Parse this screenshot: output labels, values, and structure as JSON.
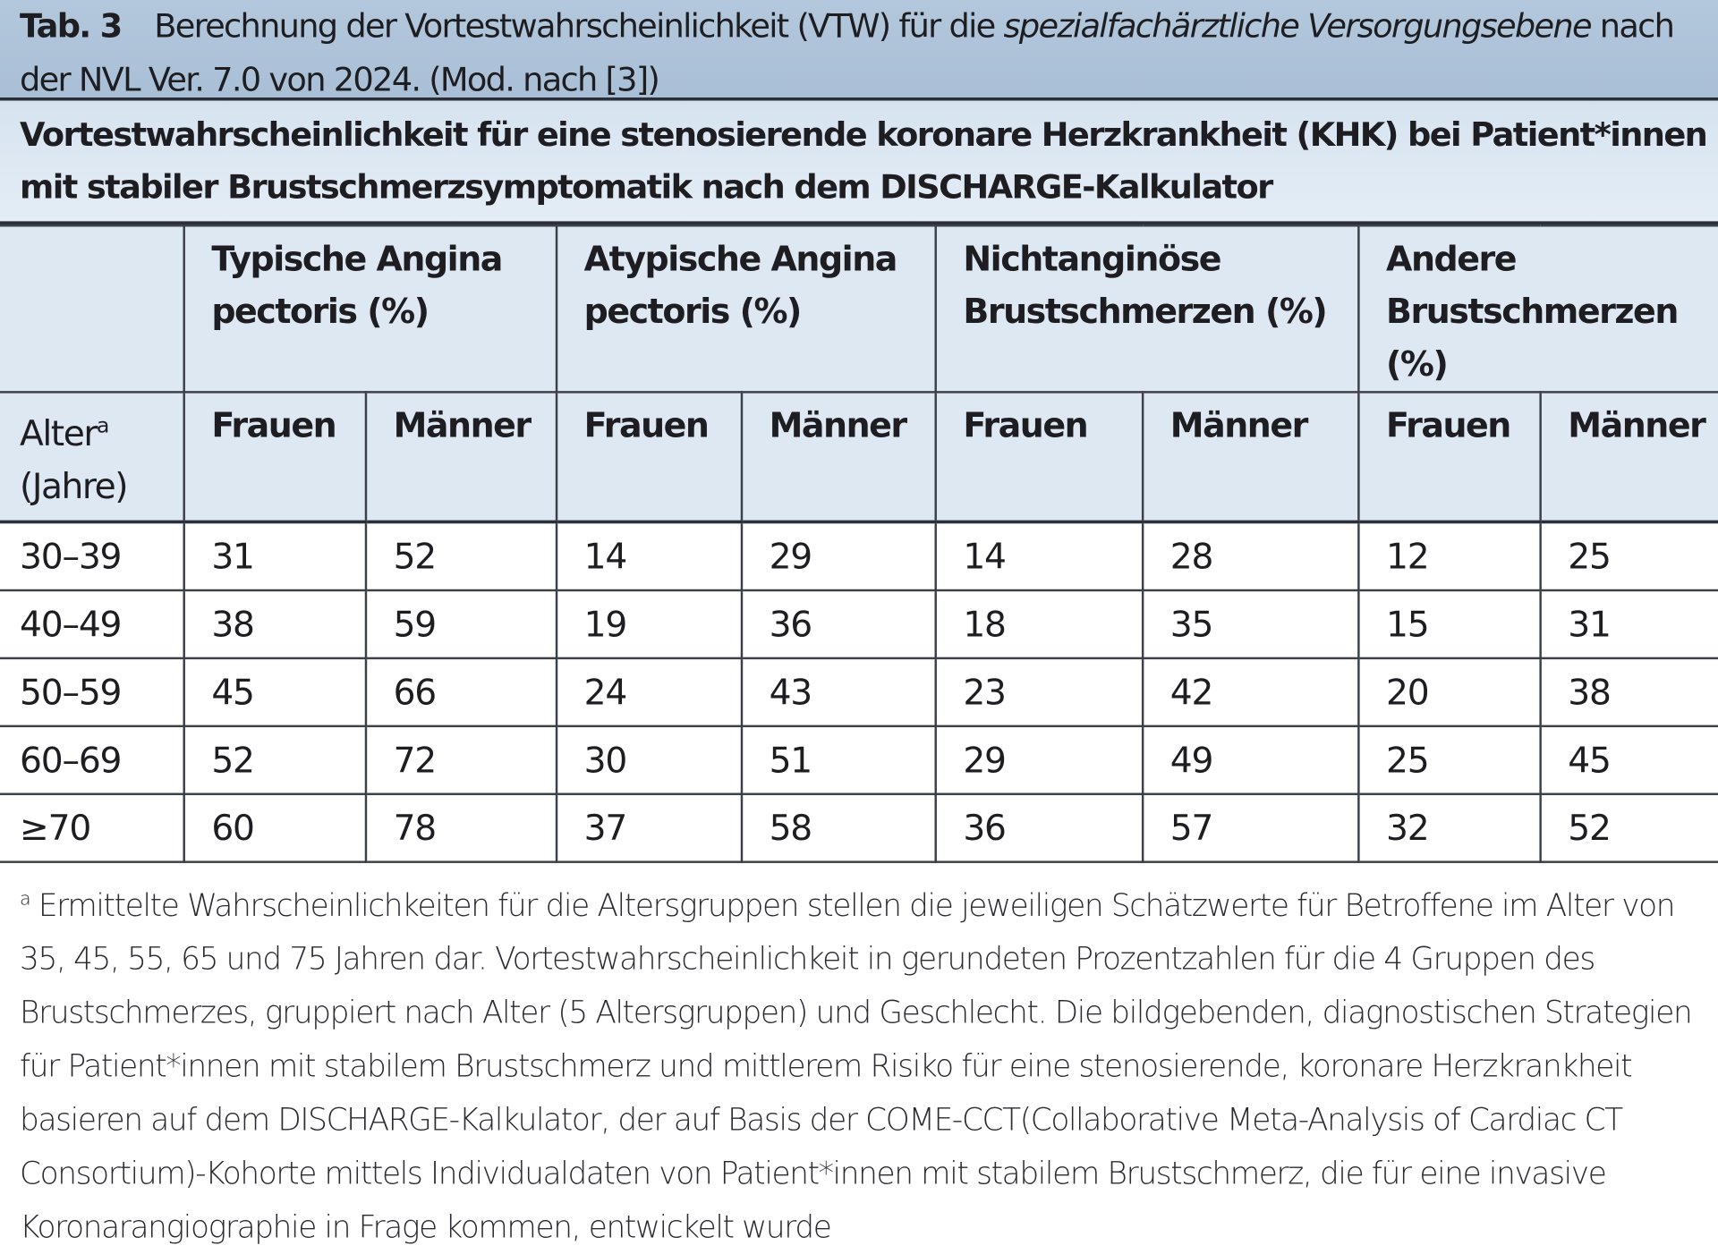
{
  "caption": {
    "label": "Tab. 3",
    "text_a": "Berechnung der Vortestwahrscheinlichkeit (VTW) für die ",
    "text_italic": "spezialfachärztliche Versorgungsebene",
    "text_b": " nach der NVL Ver. 7.0 von 2024. (Mod. nach [3])"
  },
  "subtitle": "Vortestwahrscheinlichkeit für eine stenosierende koronare Herzkrankheit (KHK) bei Patient*innen mit stabiler Brustschmerzsymptomatik nach dem DISCHARGE-Kalkulator",
  "table": {
    "groups": [
      "Typische Angina pectoris (%)",
      "Atypische Angina pectoris (%)",
      "Nichtanginöse Brustschmerzen (%)",
      "Andere Brustschmerzen (%)"
    ],
    "age_header": "Alter",
    "age_header_sup": "a",
    "age_header_unit": "(Jahre)",
    "sub_headers": [
      "Frauen",
      "Männer",
      "Frauen",
      "Männer",
      "Frauen",
      "Männer",
      "Frauen",
      "Männer"
    ],
    "rows": [
      [
        "30–39",
        "31",
        "52",
        "14",
        "29",
        "14",
        "28",
        "12",
        "25"
      ],
      [
        "40–49",
        "38",
        "59",
        "19",
        "36",
        "18",
        "35",
        "15",
        "31"
      ],
      [
        "50–59",
        "45",
        "66",
        "24",
        "43",
        "23",
        "42",
        "20",
        "38"
      ],
      [
        "60–69",
        "52",
        "72",
        "30",
        "51",
        "29",
        "49",
        "25",
        "45"
      ],
      [
        "≥70",
        "60",
        "78",
        "37",
        "58",
        "36",
        "57",
        "32",
        "52"
      ]
    ]
  },
  "footnote": {
    "mark": "a",
    "text": "Ermittelte Wahrscheinlichkeiten für die Altersgruppen stellen die jeweiligen Schätzwerte für Betroffene im Alter von 35, 45, 55, 65 und 75 Jahren dar. Vortestwahrscheinlichkeit in gerundeten Prozentzahlen für die 4 Gruppen des Brustschmerzes, gruppiert nach Alter (5 Altersgruppen) und Geschlecht. Die bildgebenden, diagnostischen Strategien für Patient*innen mit stabilem Brustschmerz und mittlerem Risiko für eine stenosierende, koronare Herzkrankheit basieren auf dem DISCHARGE-Kalkulator, der auf Basis der COME-CCT(Collaborative Meta-Analysis of Cardiac CT Consortium)-Kohorte mittels Individualdaten von Patient*innen mit stabilem Brustschmerz, die für eine invasive Koronarangiographie in Frage kommen, entwickelt wurde"
  }
}
